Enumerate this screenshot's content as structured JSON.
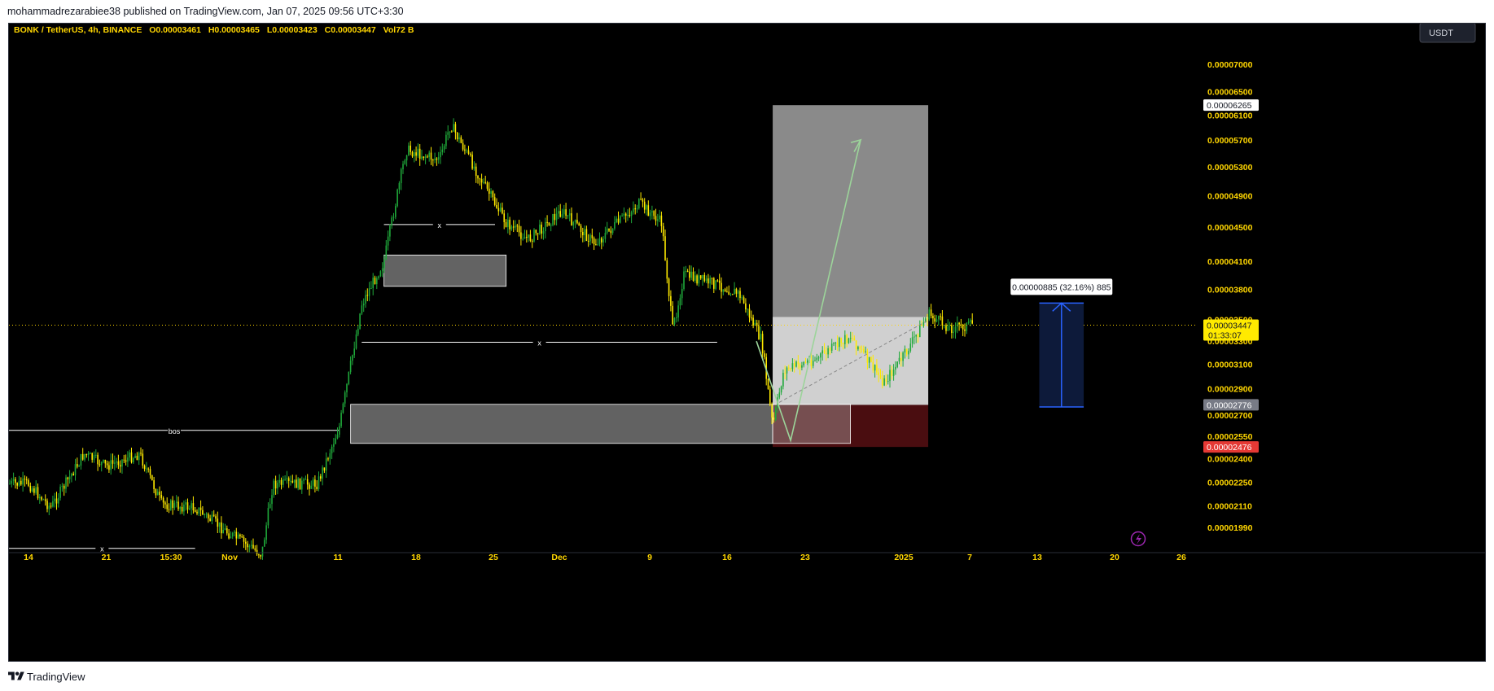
{
  "header": {
    "published_by": "mohammadrezarabiee38 published on TradingView.com, Jan 07, 2025 09:56 UTC+3:30"
  },
  "footer": {
    "brand": "TradingView"
  },
  "legend": {
    "symbol": "BONK / TetherUS, 4h, BINANCE",
    "open_label": "O",
    "open": "0.00003461",
    "high_label": "H",
    "high": "0.00003465",
    "low_label": "L",
    "low": "0.00003423",
    "close_label": "C",
    "close": "0.00003447",
    "vol_label": "Vol",
    "vol": "72 B"
  },
  "currency_button": "USDT",
  "price_tags": {
    "target": "0.00006265",
    "last": "0.00003447",
    "countdown": "01:33:07",
    "entry": "0.00002776",
    "stop": "0.00002476"
  },
  "measure_label": "0.00000885 (32.16%) 885",
  "annotations": {
    "bos": "bos",
    "x_marker": "x"
  },
  "colors": {
    "background": "#000000",
    "up_candle": "#1fa83a",
    "down_candle": "#ffea00",
    "axis_text": "#ffd600",
    "target_zone": "#8a8a8a",
    "entry_zone": "#d0d0d0",
    "stop_zone": "#4a0d10",
    "measure_fill": "#0d1a3a",
    "measure_line": "#2962ff",
    "projection": "#9cd49a",
    "stop_tag": "#e53935",
    "entry_tag": "#787b86"
  },
  "chart_data": {
    "type": "candlestick",
    "title": "BONK / TetherUS, 4h, BINANCE",
    "y_scale": "log",
    "y_ticks": [
      "0.00007000",
      "0.00006500",
      "0.00006100",
      "0.00005700",
      "0.00005300",
      "0.00004900",
      "0.00004500",
      "0.00004100",
      "0.00003800",
      "0.00003500",
      "0.00003300",
      "0.00003100",
      "0.00002900",
      "0.00002700",
      "0.00002550",
      "0.00002400",
      "0.00002250",
      "0.00002110",
      "0.00001990"
    ],
    "x_ticks": [
      "14",
      "21",
      "15:30",
      "Nov",
      "11",
      "18",
      "25",
      "Dec",
      "9",
      "16",
      "23",
      "2025",
      "7",
      "13",
      "20",
      "26"
    ],
    "price_path": [
      {
        "date": "Oct 14",
        "price": 2.24e-05
      },
      {
        "date": "Oct 16",
        "price": 2.1e-05
      },
      {
        "date": "Oct 19",
        "price": 2.43e-05
      },
      {
        "date": "Oct 21",
        "price": 2.35e-05
      },
      {
        "date": "Oct 24",
        "price": 2.43e-05
      },
      {
        "date": "Oct 26",
        "price": 2.12e-05
      },
      {
        "date": "Oct 29",
        "price": 2.1e-05
      },
      {
        "date": "Nov 1",
        "price": 1.96e-05
      },
      {
        "date": "Nov 4",
        "price": 1.85e-05
      },
      {
        "date": "Nov 5",
        "price": 2.24e-05
      },
      {
        "date": "Nov 9",
        "price": 2.24e-05
      },
      {
        "date": "Nov 11",
        "price": 2.62e-05
      },
      {
        "date": "Nov 13",
        "price": 3.65e-05
      },
      {
        "date": "Nov 15",
        "price": 4.1e-05
      },
      {
        "date": "Nov 17",
        "price": 5.55e-05
      },
      {
        "date": "Nov 20",
        "price": 5.4e-05
      },
      {
        "date": "Nov 21",
        "price": 5.95e-05
      },
      {
        "date": "Nov 24",
        "price": 5.05e-05
      },
      {
        "date": "Nov 26",
        "price": 4.55e-05
      },
      {
        "date": "Nov 28",
        "price": 4.35e-05
      },
      {
        "date": "Dec 1",
        "price": 4.7e-05
      },
      {
        "date": "Dec 4",
        "price": 4.3e-05
      },
      {
        "date": "Dec 8",
        "price": 4.8e-05
      },
      {
        "date": "Dec 10",
        "price": 4.55e-05
      },
      {
        "date": "Dec 11",
        "price": 3.4e-05
      },
      {
        "date": "Dec 12",
        "price": 3.95e-05
      },
      {
        "date": "Dec 15",
        "price": 3.85e-05
      },
      {
        "date": "Dec 17",
        "price": 3.75e-05
      },
      {
        "date": "Dec 19",
        "price": 3.3e-05
      },
      {
        "date": "Dec 20",
        "price": 2.62e-05
      },
      {
        "date": "Dec 21",
        "price": 3.05e-05
      },
      {
        "date": "Dec 24",
        "price": 3.15e-05
      },
      {
        "date": "Dec 27",
        "price": 3.35e-05
      },
      {
        "date": "Dec 30",
        "price": 2.95e-05
      },
      {
        "date": "Jan 1",
        "price": 3.2e-05
      },
      {
        "date": "Jan 3",
        "price": 3.55e-05
      },
      {
        "date": "Jan 5",
        "price": 3.42e-05
      },
      {
        "date": "Jan 7",
        "price": 3.45e-05
      }
    ],
    "zones": [
      {
        "name": "demand_zone_1",
        "from": "Nov 15",
        "to": "Nov 26",
        "low": 3.83e-05,
        "high": 4.17e-05
      },
      {
        "name": "demand_zone_2",
        "from": "Nov 12",
        "to": "Dec 20",
        "low": 2.5e-05,
        "high": 2.78e-05
      },
      {
        "name": "demand_zone_2_ext",
        "from": "Dec 20",
        "to": "Dec 27",
        "low": 2.5e-05,
        "high": 2.78e-05
      }
    ],
    "levels": [
      {
        "label": "bos",
        "price": 2.59e-05,
        "from": "Oct 11",
        "to": "Nov 11"
      },
      {
        "label": "x",
        "price": 4.53e-05,
        "from": "Nov 15",
        "to": "Nov 25"
      },
      {
        "label": "x",
        "price": 3.29e-05,
        "from": "Nov 13",
        "to": "Dec 15"
      },
      {
        "label": "x",
        "price": 1.88e-05,
        "from": "Oct 11",
        "to": "Oct 29"
      }
    ],
    "position": {
      "type": "long",
      "from": "Dec 20",
      "to": "Jan 3",
      "entry": 2.776e-05,
      "target": 6.265e-05,
      "stop": 2.476e-05
    },
    "measure": {
      "from": "Jan 13",
      "to": "Jan 17",
      "low": 2.76e-05,
      "high": 3.66e-05
    },
    "last_price": 3.447e-05
  }
}
